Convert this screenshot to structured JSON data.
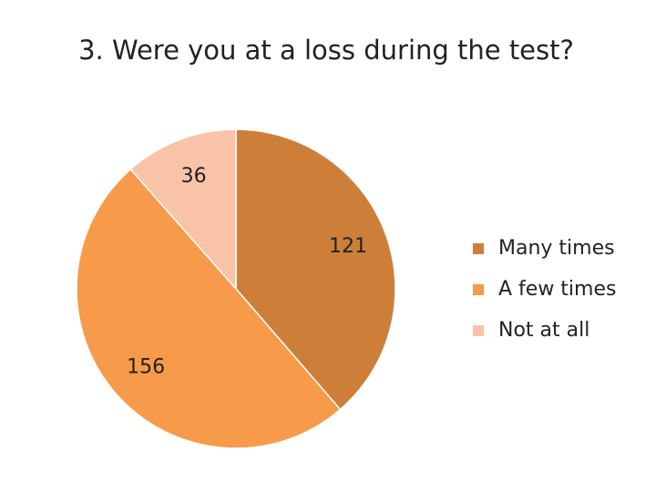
{
  "chart_data": {
    "type": "pie",
    "title": "3. Were you at a loss during the test?",
    "categories": [
      "Many times",
      "A few times",
      "Not at all"
    ],
    "values": [
      121,
      156,
      36
    ],
    "colors": [
      "#cd7f3a",
      "#f79a4a",
      "#f9c3a8"
    ],
    "legend": "right"
  }
}
